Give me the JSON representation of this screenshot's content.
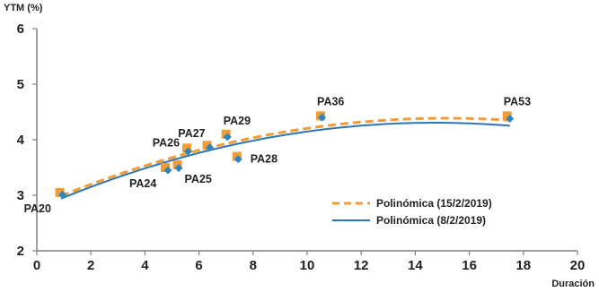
{
  "chart_data": {
    "type": "scatter",
    "title": "",
    "ylabel": "YTM (%)",
    "xlabel": "Duración",
    "xlim": [
      0,
      20
    ],
    "ylim": [
      2,
      6
    ],
    "x_ticks": [
      0,
      2,
      4,
      6,
      8,
      10,
      12,
      14,
      16,
      18,
      20
    ],
    "y_ticks": [
      2,
      3,
      4,
      5,
      6
    ],
    "grid": false,
    "legend_position": "bottom-right",
    "series": [
      {
        "name": "15/2/2019",
        "marker": "square",
        "color": "#F39C33",
        "points": [
          {
            "label": "PA20",
            "x": 0.85,
            "y": 3.05
          },
          {
            "label": "PA24",
            "x": 4.75,
            "y": 3.5
          },
          {
            "label": "PA25",
            "x": 5.2,
            "y": 3.55
          },
          {
            "label": "PA26",
            "x": 5.55,
            "y": 3.85
          },
          {
            "label": "PA27",
            "x": 6.3,
            "y": 3.9
          },
          {
            "label": "PA29",
            "x": 7.0,
            "y": 4.1
          },
          {
            "label": "PA28",
            "x": 7.4,
            "y": 3.7
          },
          {
            "label": "PA36",
            "x": 10.5,
            "y": 4.43
          },
          {
            "label": "PA53",
            "x": 17.4,
            "y": 4.43
          }
        ]
      },
      {
        "name": "8/2/2019",
        "marker": "diamond",
        "color": "#2E86C1",
        "points": [
          {
            "label": "PA20",
            "x": 0.95,
            "y": 3.01
          },
          {
            "label": "PA24",
            "x": 4.85,
            "y": 3.45
          },
          {
            "label": "PA25",
            "x": 5.25,
            "y": 3.49
          },
          {
            "label": "PA26",
            "x": 5.6,
            "y": 3.79
          },
          {
            "label": "PA27",
            "x": 6.4,
            "y": 3.86
          },
          {
            "label": "PA29",
            "x": 7.05,
            "y": 4.05
          },
          {
            "label": "PA28",
            "x": 7.45,
            "y": 3.65
          },
          {
            "label": "PA36",
            "x": 10.55,
            "y": 4.4
          },
          {
            "label": "PA53",
            "x": 17.5,
            "y": 4.38
          }
        ]
      }
    ],
    "trendlines": [
      {
        "name": "Polinómica (15/2/2019)",
        "style": "dashed",
        "color": "#F39C33",
        "coeffs": [
          2.807,
          0.2085,
          -0.00688
        ],
        "xrange": [
          0.9,
          17.5
        ]
      },
      {
        "name": "Polinómica (8/2/2019)",
        "style": "solid",
        "color": "#2E75B6",
        "coeffs": [
          2.757,
          0.2105,
          -0.00715
        ],
        "xrange": [
          0.9,
          17.5
        ]
      }
    ],
    "point_labels": [
      {
        "text": "PA20",
        "x": 0.85,
        "y": 3.05,
        "anchor": "below-left"
      },
      {
        "text": "PA24",
        "x": 4.75,
        "y": 3.5,
        "anchor": "below-left"
      },
      {
        "text": "PA25",
        "x": 5.2,
        "y": 3.55,
        "anchor": "below-right"
      },
      {
        "text": "PA26",
        "x": 5.55,
        "y": 3.85,
        "anchor": "left"
      },
      {
        "text": "PA27",
        "x": 6.3,
        "y": 3.9,
        "anchor": "above-left"
      },
      {
        "text": "PA29",
        "x": 7.0,
        "y": 4.1,
        "anchor": "above-right"
      },
      {
        "text": "PA28",
        "x": 7.4,
        "y": 3.7,
        "anchor": "right"
      },
      {
        "text": "PA36",
        "x": 10.5,
        "y": 4.43,
        "anchor": "above"
      },
      {
        "text": "PA53",
        "x": 17.4,
        "y": 4.43,
        "anchor": "above"
      }
    ]
  }
}
